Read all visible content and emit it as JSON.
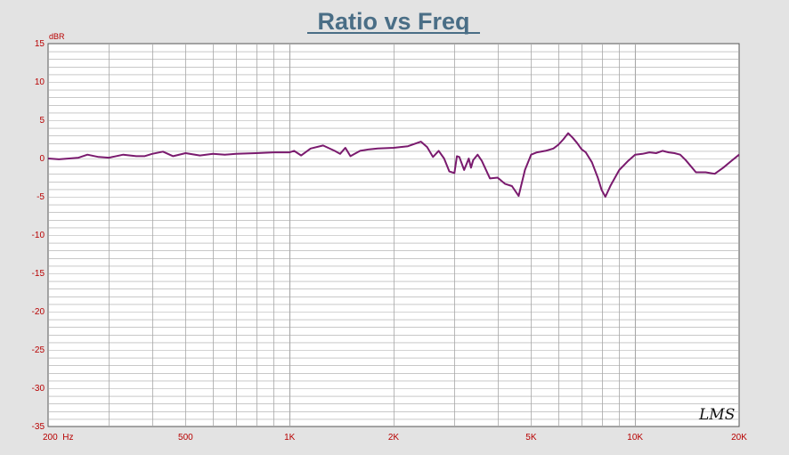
{
  "chart_data": {
    "type": "line",
    "title": "Ratio vs Freq",
    "ylabel": "dBR",
    "xlabel": "",
    "x_scale": "log",
    "xlim": [
      200,
      20000
    ],
    "ylim": [
      -35,
      15
    ],
    "grid": true,
    "y_ticks": [
      "15",
      "10",
      "5",
      "0",
      "-5",
      "-10",
      "-15",
      "-20",
      "-25",
      "-30",
      "-35"
    ],
    "x_tick_labels": [
      {
        "value": 200,
        "label": "200  Hz"
      },
      {
        "value": 500,
        "label": "500"
      },
      {
        "value": 1000,
        "label": "1K"
      },
      {
        "value": 2000,
        "label": "2K"
      },
      {
        "value": 5000,
        "label": "5K"
      },
      {
        "value": 10000,
        "label": "10K"
      },
      {
        "value": 20000,
        "label": "20K"
      }
    ],
    "watermark": "LMS",
    "colors": {
      "background": "#e3e3e3",
      "plot_background": "#ffffff",
      "grid": "#a8a8a8",
      "axis_text": "#b80000",
      "title": "#4a6e86",
      "line": "#7a1a6e"
    },
    "series": [
      {
        "x": [
          200,
          215,
          230,
          245,
          260,
          280,
          300,
          330,
          360,
          380,
          400,
          430,
          460,
          500,
          550,
          600,
          650,
          700,
          800,
          900,
          1000,
          1030,
          1080,
          1150,
          1250,
          1350,
          1400,
          1450,
          1500,
          1600,
          1700,
          1800,
          2000,
          2200,
          2400,
          2500,
          2600,
          2700,
          2800,
          2900,
          3000,
          3050,
          3100,
          3200,
          3300,
          3350,
          3400,
          3500,
          3600,
          3800,
          4000,
          4200,
          4400,
          4600,
          4800,
          5000,
          5200,
          5500,
          5800,
          6000,
          6200,
          6400,
          6600,
          6800,
          7000,
          7200,
          7500,
          7800,
          8000,
          8200,
          8500,
          9000,
          9500,
          10000,
          10500,
          11000,
          11500,
          12000,
          12500,
          13000,
          13500,
          14000,
          15000,
          16000,
          17000,
          18000,
          19000,
          20000
        ],
        "y": [
          0.0,
          -0.1,
          0.0,
          0.1,
          0.5,
          0.2,
          0.1,
          0.5,
          0.3,
          0.3,
          0.6,
          0.9,
          0.3,
          0.7,
          0.4,
          0.6,
          0.5,
          0.6,
          0.7,
          0.8,
          0.8,
          1.0,
          0.4,
          1.3,
          1.7,
          1.0,
          0.6,
          1.4,
          0.3,
          1.0,
          1.2,
          1.3,
          1.4,
          1.6,
          2.2,
          1.5,
          0.2,
          1.0,
          0.0,
          -1.7,
          -1.9,
          0.3,
          0.2,
          -1.5,
          0.0,
          -1.2,
          -0.2,
          0.5,
          -0.3,
          -2.6,
          -2.5,
          -3.3,
          -3.6,
          -4.9,
          -1.5,
          0.5,
          0.8,
          1.0,
          1.3,
          1.8,
          2.5,
          3.3,
          2.7,
          2.0,
          1.2,
          0.8,
          -0.5,
          -2.5,
          -4.1,
          -5.0,
          -3.5,
          -1.5,
          -0.4,
          0.5,
          0.6,
          0.8,
          0.7,
          1.0,
          0.8,
          0.7,
          0.5,
          -0.2,
          -1.8,
          -1.8,
          -2.0,
          -1.2,
          -0.3,
          0.5
        ]
      }
    ]
  }
}
